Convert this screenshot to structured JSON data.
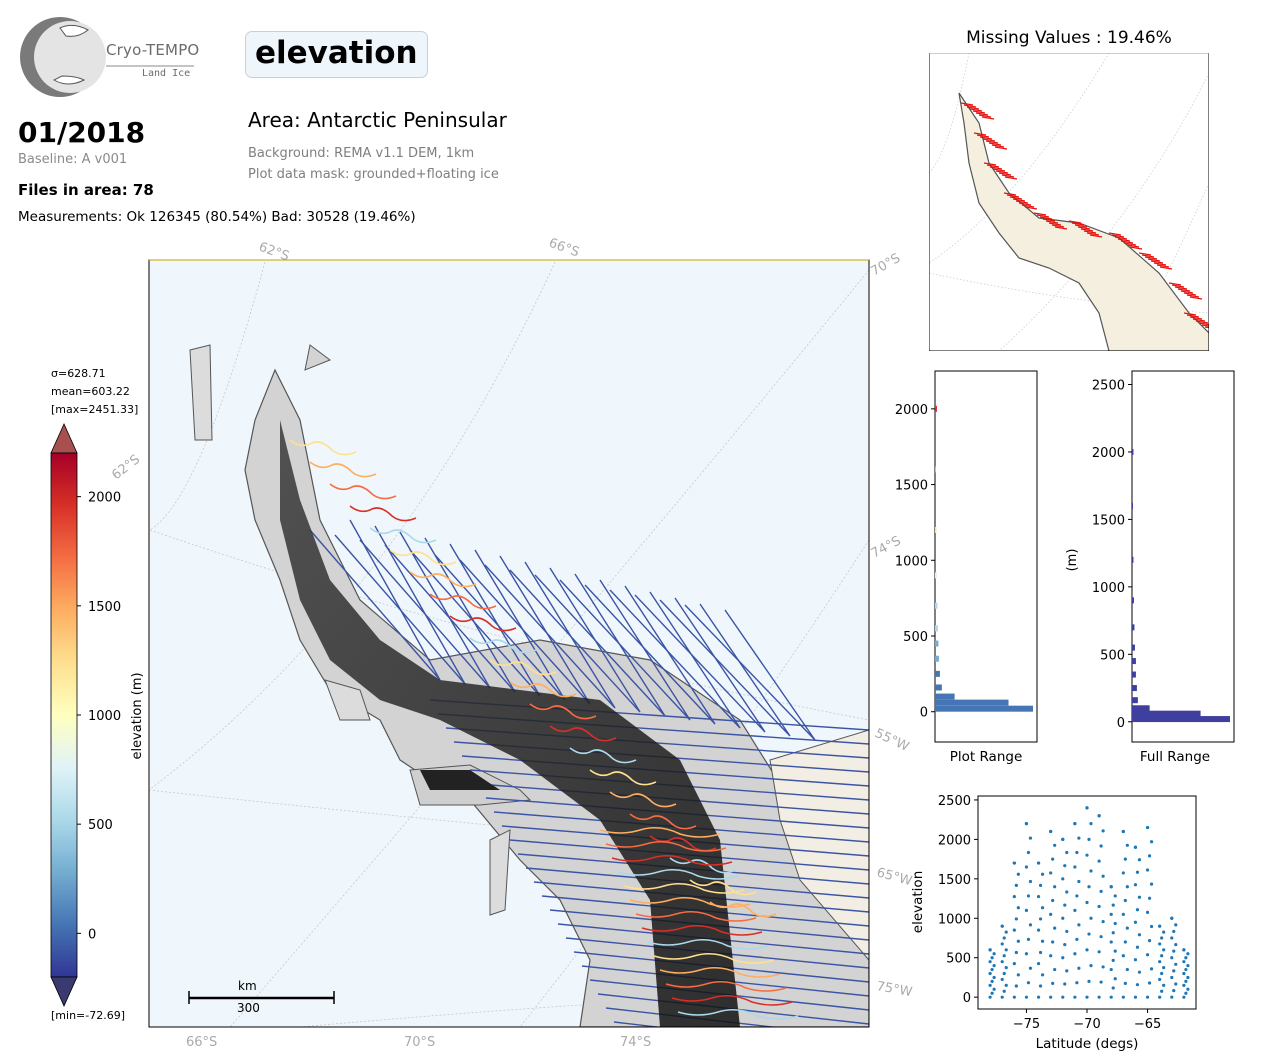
{
  "logo": {
    "name": "Cryo-TEMPO",
    "subtitle": "Land Ice"
  },
  "header": {
    "parameter": "elevation",
    "date": "01/2018",
    "baseline": "Baseline: A v001",
    "files": "Files in area: 78",
    "measurements": "Measurements: Ok 126345 (80.54%) Bad: 30528 (19.46%)",
    "area": "Area: Antarctic Peninsular",
    "background": "Background: REMA v1.1 DEM, 1km",
    "mask": "Plot data mask: grounded+floating ice"
  },
  "map": {
    "lat_labels_top": [
      "62°S",
      "66°S",
      "70°S"
    ],
    "lat_labels_left": [
      "62°S"
    ],
    "lat_labels_right": [
      "74°S"
    ],
    "lon_labels_right": [
      "55°W",
      "65°W",
      "75°W"
    ],
    "lat_labels_bottom": [
      "66°S",
      "70°S",
      "74°S"
    ],
    "scalebar": {
      "unit": "km",
      "value": "300"
    },
    "colors": {
      "ocean": "#eff7fd",
      "track": "#3b54a4",
      "coast": "#555555",
      "grid": "#bbbbbb"
    }
  },
  "colorbar": {
    "label": "elevation (m)",
    "stats": {
      "sigma": "σ=628.71",
      "mean": "mean=603.22",
      "max": "[max=2451.33]",
      "min": "[min=-72.69]"
    },
    "ticks": [
      0,
      500,
      1000,
      1500,
      2000
    ],
    "range": [
      -200,
      2200
    ],
    "cmap": [
      "#313695",
      "#4575b4",
      "#74add1",
      "#abd9e9",
      "#e0f3f8",
      "#ffffbf",
      "#fee090",
      "#fdae61",
      "#f46d43",
      "#d73027",
      "#a50026"
    ],
    "over_color": "#a85050",
    "under_color": "#3b3a70"
  },
  "missing": {
    "title": "Missing Values : 19.46%",
    "colors": {
      "point": "#e8100c",
      "land": "#f5efdf"
    }
  },
  "hist_plot": {
    "xlabel": "Plot Range",
    "yticks": [
      0,
      500,
      1000,
      1500,
      2000
    ],
    "ylim": [
      -200,
      2250
    ]
  },
  "hist_full": {
    "xlabel": "Full Range",
    "ylabel": "(m)",
    "yticks": [
      0,
      500,
      1000,
      1500,
      2000,
      2500
    ],
    "ylim": [
      -150,
      2600
    ],
    "color": "#3f3fa0"
  },
  "chart_data": [
    {
      "type": "bar",
      "title": "",
      "xlabel": "Plot Range",
      "orientation": "horizontal",
      "categories": [
        20,
        60,
        100,
        160,
        250,
        350,
        450,
        550,
        700,
        900,
        1200,
        1600,
        2000
      ],
      "values": [
        1.0,
        0.75,
        0.2,
        0.07,
        0.05,
        0.04,
        0.035,
        0.03,
        0.025,
        0.02,
        0.015,
        0.01,
        0.02
      ],
      "ylim": [
        -200,
        2250
      ]
    },
    {
      "type": "bar",
      "title": "",
      "xlabel": "Full Range",
      "ylabel": "(m)",
      "orientation": "horizontal",
      "categories": [
        20,
        60,
        100,
        160,
        250,
        350,
        450,
        550,
        700,
        900,
        1200,
        1600,
        2000
      ],
      "values": [
        1.0,
        0.7,
        0.18,
        0.06,
        0.05,
        0.04,
        0.04,
        0.03,
        0.025,
        0.02,
        0.015,
        0.01,
        0.015
      ],
      "ylim": [
        -150,
        2600
      ]
    },
    {
      "type": "scatter",
      "title": "",
      "xlabel": "Latitude (degs)",
      "ylabel": "elevation",
      "xticks": [
        -75,
        -70,
        -65
      ],
      "yticks": [
        0,
        500,
        1000,
        1500,
        2000,
        2500
      ],
      "xlim": [
        -79,
        -61
      ],
      "ylim": [
        -150,
        2550
      ],
      "color": "#1f77b4",
      "x": [
        -78,
        -77,
        -76,
        -75,
        -74,
        -73,
        -72,
        -71,
        -70,
        -69,
        -68,
        -67,
        -66,
        -65,
        -64,
        -63,
        -62
      ],
      "y": [
        600,
        900,
        1700,
        2200,
        1700,
        2100,
        2000,
        2200,
        2400,
        2300,
        1400,
        2100,
        1900,
        2150,
        900,
        1000,
        600
      ]
    }
  ]
}
